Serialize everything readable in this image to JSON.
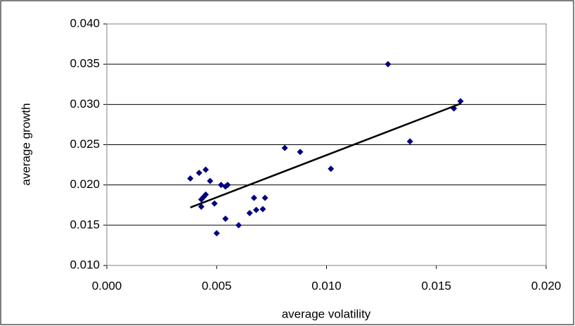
{
  "chart_data": {
    "type": "scatter",
    "x_label": "average volatility",
    "y_label": "average growth",
    "series": [
      {
        "color": "#000080",
        "x": [
          0.0038,
          0.0042,
          0.0045,
          0.0047,
          0.0043,
          0.0045,
          0.0044,
          0.0043,
          0.0049,
          0.005,
          0.0052,
          0.0054,
          0.0055,
          0.0054,
          0.006,
          0.0065,
          0.0067,
          0.0068,
          0.0071,
          0.0072,
          0.0081,
          0.0088,
          0.0102,
          0.0128,
          0.0138,
          0.0158,
          0.0161
        ],
        "values": [
          0.0208,
          0.0215,
          0.0219,
          0.0205,
          0.0182,
          0.0188,
          0.0185,
          0.0173,
          0.0177,
          0.014,
          0.02,
          0.0198,
          0.02,
          0.0158,
          0.015,
          0.0165,
          0.0184,
          0.0169,
          0.017,
          0.0184,
          0.0246,
          0.0241,
          0.022,
          0.035,
          0.0254,
          0.0295,
          0.0304
        ]
      }
    ],
    "trendline": {
      "color": "#000000",
      "x": [
        0.0038,
        0.0161
      ],
      "y": [
        0.0172,
        0.0301
      ]
    },
    "xlim": [
      0,
      0.02
    ],
    "xticks": [
      {
        "value": 0,
        "label": "0.000"
      },
      {
        "value": 0.005,
        "label": "0.005"
      },
      {
        "value": 0.01,
        "label": "0.010"
      },
      {
        "value": 0.015,
        "label": "0.015"
      },
      {
        "value": 0.02,
        "label": "0.020"
      }
    ],
    "ylim": [
      0.01,
      0.04
    ],
    "yticks": [
      {
        "value": 0.01,
        "label": "0.010"
      },
      {
        "value": 0.015,
        "label": "0.015"
      },
      {
        "value": 0.02,
        "label": "0.020"
      },
      {
        "value": 0.025,
        "label": "0.025"
      },
      {
        "value": 0.03,
        "label": "0.030"
      },
      {
        "value": 0.035,
        "label": "0.035"
      },
      {
        "value": 0.04,
        "label": "0.040"
      }
    ],
    "grid": true
  }
}
